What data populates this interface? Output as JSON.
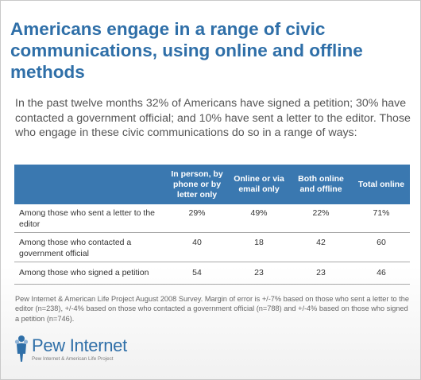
{
  "title": "Americans engage in a range of civic communications, using online and offline methods",
  "subtitle": "In the past twelve months 32% of Americans have signed a petition; 30% have contacted a government official; and 10% have sent a letter to the editor. Those who engage in these civic communications do so in a range of ways:",
  "colors": {
    "accent": "#2f6fa8",
    "header_bg": "#3a78b0"
  },
  "chart_data": {
    "type": "table",
    "columns": [
      "",
      "In person, by phone or by letter only",
      "Online or via email only",
      "Both online and offline",
      "Total online"
    ],
    "rows": [
      {
        "label": "Among those who sent a letter to the editor",
        "values": [
          "29%",
          "49%",
          "22%",
          "71%"
        ]
      },
      {
        "label": "Among those who contacted a government official",
        "values": [
          "40",
          "18",
          "42",
          "60"
        ]
      },
      {
        "label": "Among those who signed a petition",
        "values": [
          "54",
          "23",
          "23",
          "46"
        ]
      }
    ]
  },
  "note": "Pew Internet & American Life Project August 2008 Survey. Margin of error is +/-7% based on those who sent a letter to the editor (n=238), +/-4% based on those who contacted a government official (n=788) and +/-4% based on those who signed a petition (n=746).",
  "logo": {
    "name": "Pew Internet",
    "tagline": "Pew Internet & American Life Project",
    "icon": "pew-people-icon"
  }
}
